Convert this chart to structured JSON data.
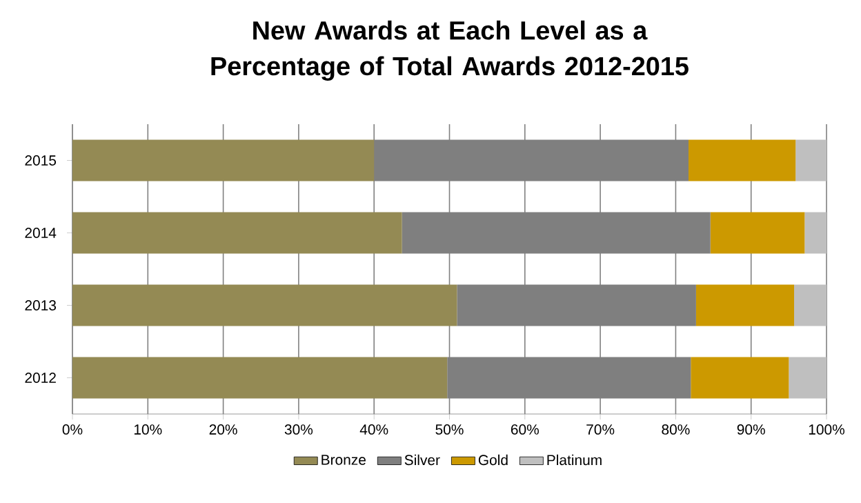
{
  "chart_data": {
    "type": "bar",
    "orientation": "horizontal",
    "stacked": true,
    "title": "New Awards at Each Level as a Percentage of Total Awards 2012-2015",
    "categories": [
      "2015",
      "2014",
      "2013",
      "2012"
    ],
    "series": [
      {
        "name": "Bronze",
        "color": "#948a54",
        "values": [
          40.0,
          43.7,
          51.0,
          49.7
        ]
      },
      {
        "name": "Silver",
        "color": "#7f7f7f",
        "values": [
          41.7,
          40.9,
          31.7,
          32.3
        ]
      },
      {
        "name": "Gold",
        "color": "#cc9900",
        "values": [
          14.2,
          12.5,
          13.0,
          13.0
        ]
      },
      {
        "name": "Platinum",
        "color": "#bfbfbf",
        "values": [
          4.1,
          2.9,
          4.3,
          5.0
        ]
      }
    ],
    "xlim": [
      0,
      100
    ],
    "xticks": [
      {
        "value": 0,
        "label": "0%"
      },
      {
        "value": 10,
        "label": "10%"
      },
      {
        "value": 20,
        "label": "20%"
      },
      {
        "value": 30,
        "label": "30%"
      },
      {
        "value": 40,
        "label": "40%"
      },
      {
        "value": 50,
        "label": "50%"
      },
      {
        "value": 60,
        "label": "60%"
      },
      {
        "value": 70,
        "label": "70%"
      },
      {
        "value": 80,
        "label": "80%"
      },
      {
        "value": 90,
        "label": "90%"
      },
      {
        "value": 100,
        "label": "100%"
      }
    ],
    "grid": "x",
    "legend": "bottom"
  }
}
